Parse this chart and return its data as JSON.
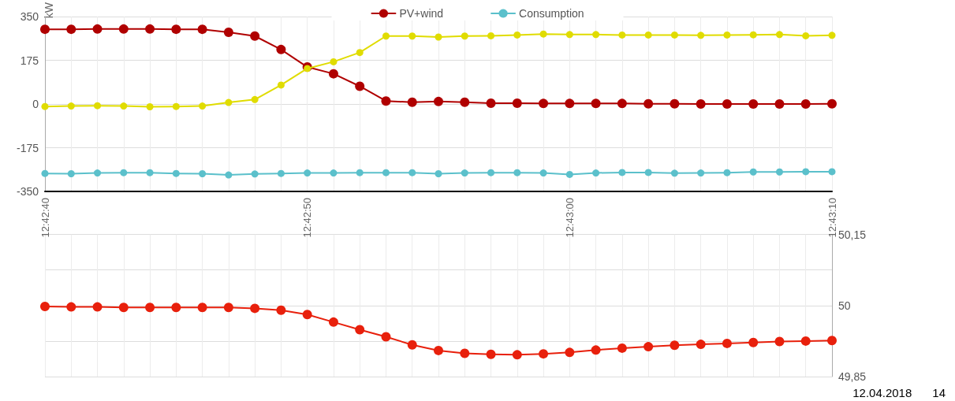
{
  "chart_data": [
    {
      "type": "line",
      "ylabel": "kW",
      "legend": "top",
      "grid": true,
      "tick_labels": "y",
      "marker": "circle",
      "line_style": "solid",
      "x": [
        "2018-04-12T12:42:40",
        "2018-04-12T12:42:41",
        "2018-04-12T12:42:42",
        "2018-04-12T12:42:43",
        "2018-04-12T12:42:44",
        "2018-04-12T12:42:45",
        "2018-04-12T12:42:46",
        "2018-04-12T12:42:47",
        "2018-04-12T12:42:48",
        "2018-04-12T12:42:49",
        "2018-04-12T12:42:50",
        "2018-04-12T12:42:51",
        "2018-04-12T12:42:52",
        "2018-04-12T12:42:53",
        "2018-04-12T12:42:54",
        "2018-04-12T12:42:55",
        "2018-04-12T12:42:56",
        "2018-04-12T12:42:57",
        "2018-04-12T12:42:58",
        "2018-04-12T12:42:59",
        "2018-04-12T12:43:00",
        "2018-04-12T12:43:01",
        "2018-04-12T12:43:02",
        "2018-04-12T12:43:03",
        "2018-04-12T12:43:04",
        "2018-04-12T12:43:05",
        "2018-04-12T12:43:06",
        "2018-04-12T12:43:07",
        "2018-04-12T12:43:08",
        "2018-04-12T12:43:09",
        "2018-04-12T12:43:10"
      ],
      "xlim": [
        "2018-04-12T12:42:40",
        "2018-04-12T12:43:10"
      ],
      "xticks": [
        "2018-04-12T12:42:40",
        "2018-04-12T12:42:41",
        "2018-04-12T12:42:42",
        "2018-04-12T12:42:43",
        "2018-04-12T12:42:44",
        "2018-04-12T12:42:45",
        "2018-04-12T12:42:46",
        "2018-04-12T12:42:47",
        "2018-04-12T12:42:48",
        "2018-04-12T12:42:49",
        "2018-04-12T12:42:50",
        "2018-04-12T12:42:51",
        "2018-04-12T12:42:52",
        "2018-04-12T12:42:53",
        "2018-04-12T12:42:54",
        "2018-04-12T12:42:55",
        "2018-04-12T12:42:56",
        "2018-04-12T12:42:57",
        "2018-04-12T12:42:58",
        "2018-04-12T12:42:59",
        "2018-04-12T12:43:00",
        "2018-04-12T12:43:01",
        "2018-04-12T12:43:02",
        "2018-04-12T12:43:03",
        "2018-04-12T12:43:04",
        "2018-04-12T12:43:05",
        "2018-04-12T12:43:06",
        "2018-04-12T12:43:07",
        "2018-04-12T12:43:08",
        "2018-04-12T12:43:09",
        "2018-04-12T12:43:10"
      ],
      "ylim": [
        -350,
        350
      ],
      "yticks": [
        -350,
        -175,
        0,
        175,
        350
      ],
      "series": [
        {
          "name": "PV+wind",
          "color": "#b00000",
          "values": [
            299,
            299,
            300,
            300,
            300,
            299,
            299,
            287,
            272,
            218,
            148,
            121,
            71,
            12,
            7,
            10,
            7,
            3,
            3,
            2,
            2,
            2,
            2,
            1,
            1,
            0,
            0,
            0,
            0,
            0,
            1
          ]
        },
        {
          "name": "Consumption",
          "color": "#5bc0cb",
          "values": [
            -278,
            -279,
            -276,
            -275,
            -275,
            -278,
            -279,
            -284,
            -280,
            -278,
            -276,
            -276,
            -275,
            -275,
            -275,
            -279,
            -276,
            -275,
            -275,
            -276,
            -282,
            -276,
            -274,
            -274,
            -277,
            -276,
            -275,
            -272,
            -272,
            -271,
            -271
          ]
        },
        {
          "color": "#e0dc00",
          "values": [
            -10,
            -8,
            -7,
            -8,
            -11,
            -10,
            -8,
            6,
            18,
            76,
            142,
            169,
            206,
            272,
            272,
            268,
            272,
            273,
            276,
            280,
            278,
            278,
            276,
            276,
            276,
            275,
            276,
            277,
            278,
            273,
            275
          ]
        }
      ]
    },
    {
      "type": "line",
      "grid": true,
      "marker": "circle",
      "line_style": "solid",
      "annotations": [
        "12.04.2018",
        "14"
      ],
      "x": [
        "2018-04-12T12:42:40",
        "2018-04-12T12:42:41",
        "2018-04-12T12:42:42",
        "2018-04-12T12:42:43",
        "2018-04-12T12:42:44",
        "2018-04-12T12:42:45",
        "2018-04-12T12:42:46",
        "2018-04-12T12:42:47",
        "2018-04-12T12:42:48",
        "2018-04-12T12:42:49",
        "2018-04-12T12:42:50",
        "2018-04-12T12:42:51",
        "2018-04-12T12:42:52",
        "2018-04-12T12:42:53",
        "2018-04-12T12:42:54",
        "2018-04-12T12:42:55",
        "2018-04-12T12:42:56",
        "2018-04-12T12:42:57",
        "2018-04-12T12:42:58",
        "2018-04-12T12:42:59",
        "2018-04-12T12:43:00",
        "2018-04-12T12:43:01",
        "2018-04-12T12:43:02",
        "2018-04-12T12:43:03",
        "2018-04-12T12:43:04",
        "2018-04-12T12:43:05",
        "2018-04-12T12:43:06",
        "2018-04-12T12:43:07",
        "2018-04-12T12:43:08",
        "2018-04-12T12:43:09",
        "2018-04-12T12:43:10"
      ],
      "xlim": [
        "2018-04-12T12:42:40",
        "2018-04-12T12:43:10"
      ],
      "xticks": [
        {
          "value": "2018-04-12T12:42:40",
          "label": "12:42:40"
        },
        {
          "value": "2018-04-12T12:42:41",
          "label": null
        },
        {
          "value": "2018-04-12T12:42:42",
          "label": null
        },
        {
          "value": "2018-04-12T12:42:43",
          "label": null
        },
        {
          "value": "2018-04-12T12:42:44",
          "label": null
        },
        {
          "value": "2018-04-12T12:42:45",
          "label": null
        },
        {
          "value": "2018-04-12T12:42:46",
          "label": null
        },
        {
          "value": "2018-04-12T12:42:47",
          "label": null
        },
        {
          "value": "2018-04-12T12:42:48",
          "label": null
        },
        {
          "value": "2018-04-12T12:42:49",
          "label": null
        },
        {
          "value": "2018-04-12T12:42:50",
          "label": "12:42:50"
        },
        {
          "value": "2018-04-12T12:42:51",
          "label": null
        },
        {
          "value": "2018-04-12T12:42:52",
          "label": null
        },
        {
          "value": "2018-04-12T12:42:53",
          "label": null
        },
        {
          "value": "2018-04-12T12:42:54",
          "label": null
        },
        {
          "value": "2018-04-12T12:42:55",
          "label": null
        },
        {
          "value": "2018-04-12T12:42:56",
          "label": null
        },
        {
          "value": "2018-04-12T12:42:57",
          "label": null
        },
        {
          "value": "2018-04-12T12:42:58",
          "label": null
        },
        {
          "value": "2018-04-12T12:42:59",
          "label": null
        },
        {
          "value": "2018-04-12T12:43:00",
          "label": "12:43:00"
        },
        {
          "value": "2018-04-12T12:43:01",
          "label": null
        },
        {
          "value": "2018-04-12T12:43:02",
          "label": null
        },
        {
          "value": "2018-04-12T12:43:03",
          "label": null
        },
        {
          "value": "2018-04-12T12:43:04",
          "label": null
        },
        {
          "value": "2018-04-12T12:43:05",
          "label": null
        },
        {
          "value": "2018-04-12T12:43:06",
          "label": null
        },
        {
          "value": "2018-04-12T12:43:07",
          "label": null
        },
        {
          "value": "2018-04-12T12:43:08",
          "label": null
        },
        {
          "value": "2018-04-12T12:43:09",
          "label": null
        },
        {
          "value": "2018-04-12T12:43:10",
          "label": "12:43:10"
        }
      ],
      "ylim": [
        49.85,
        50.15
      ],
      "yticks": [
        {
          "value": 49.85,
          "label": "49,85"
        },
        {
          "value": 49.925,
          "label": null
        },
        {
          "value": 50,
          "label": "50"
        },
        {
          "value": 50.075,
          "label": null
        },
        {
          "value": 50.15,
          "label": "50,15"
        }
      ],
      "series": [
        {
          "color": "#e8200c",
          "values": [
            49.998,
            49.997,
            49.997,
            49.996,
            49.996,
            49.996,
            49.996,
            49.996,
            49.994,
            49.99,
            49.981,
            49.965,
            49.949,
            49.934,
            49.917,
            49.905,
            49.899,
            49.897,
            49.896,
            49.898,
            49.901,
            49.906,
            49.91,
            49.913,
            49.916,
            49.918,
            49.92,
            49.922,
            49.924,
            49.925,
            49.926
          ]
        }
      ]
    }
  ]
}
